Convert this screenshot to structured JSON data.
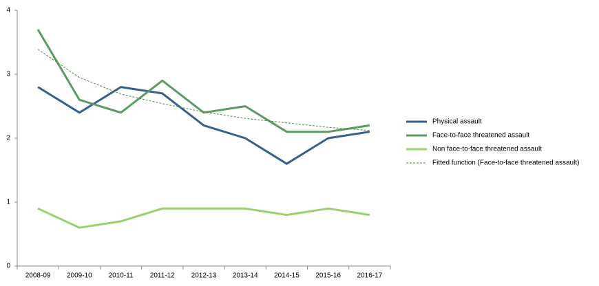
{
  "chart_data": {
    "type": "line",
    "categories": [
      "2008-09",
      "2009-10",
      "2010-11",
      "2011-12",
      "2012-13",
      "2013-14",
      "2014-15",
      "2015-16",
      "2016-17"
    ],
    "series": [
      {
        "name": "Physical assault",
        "color": "#34608f",
        "values": [
          2.8,
          2.4,
          2.8,
          2.7,
          2.2,
          2.0,
          1.6,
          2.0,
          2.1
        ]
      },
      {
        "name": "Face-to-face threatened assault",
        "color": "#5b9a62",
        "values": [
          3.7,
          2.6,
          2.4,
          2.9,
          2.4,
          2.5,
          2.1,
          2.1,
          2.2
        ]
      },
      {
        "name": "Non face-to-face threatened assault",
        "color": "#9bcf6b",
        "values": [
          0.9,
          0.6,
          0.7,
          0.9,
          0.9,
          0.9,
          0.8,
          0.9,
          0.8
        ]
      },
      {
        "name": "Fitted function (Face-to-face threatened assault)",
        "color": "#4a8a3e",
        "style": "dashed",
        "values": [
          3.39,
          2.95,
          2.69,
          2.54,
          2.41,
          2.31,
          2.24,
          2.17,
          2.12
        ]
      }
    ],
    "ylim": [
      0,
      4
    ],
    "yticks": [
      0,
      1,
      2,
      3,
      4
    ],
    "grid": false,
    "legend": "right"
  }
}
